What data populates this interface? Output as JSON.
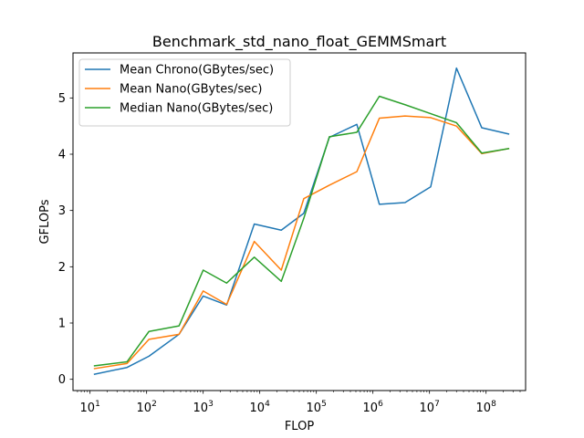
{
  "chart_data": {
    "type": "line",
    "title": "Benchmark_std_nano_float_GEMMSmart",
    "xlabel": "FLOP",
    "ylabel": "GFLOPs",
    "xscale": "log",
    "xlim": [
      5,
      500000000
    ],
    "ylim": [
      -0.2,
      5.8
    ],
    "x_ticks": [
      {
        "value": 10,
        "base": "10",
        "exp": "1"
      },
      {
        "value": 100,
        "base": "10",
        "exp": "2"
      },
      {
        "value": 1000,
        "base": "10",
        "exp": "3"
      },
      {
        "value": 10000,
        "base": "10",
        "exp": "4"
      },
      {
        "value": 100000,
        "base": "10",
        "exp": "5"
      },
      {
        "value": 1000000,
        "base": "10",
        "exp": "6"
      },
      {
        "value": 10000000,
        "base": "10",
        "exp": "7"
      },
      {
        "value": 100000000,
        "base": "10",
        "exp": "8"
      }
    ],
    "y_ticks": [
      {
        "value": 0,
        "label": "0"
      },
      {
        "value": 1,
        "label": "1"
      },
      {
        "value": 2,
        "label": "2"
      },
      {
        "value": 3,
        "label": "3"
      },
      {
        "value": 4,
        "label": "4"
      },
      {
        "value": 5,
        "label": "5"
      }
    ],
    "grid": false,
    "legend_position": "top-left",
    "x": [
      12,
      45,
      110,
      375,
      1000,
      2600,
      8000,
      24000,
      60000,
      170000,
      520000,
      1300000,
      3700000,
      10500000,
      30000000,
      84000000,
      250000000
    ],
    "series": [
      {
        "name": "Mean Chrono(GBytes/sec)",
        "color": "#1f77b4",
        "values": [
          0.09,
          0.21,
          0.41,
          0.8,
          1.48,
          1.32,
          2.76,
          2.65,
          2.95,
          4.3,
          4.53,
          3.11,
          3.14,
          3.42,
          5.53,
          4.47,
          4.36
        ]
      },
      {
        "name": "Mean Nano(GBytes/sec)",
        "color": "#ff7f0e",
        "values": [
          0.19,
          0.28,
          0.71,
          0.8,
          1.57,
          1.33,
          2.45,
          1.94,
          3.21,
          3.45,
          3.69,
          4.64,
          4.68,
          4.65,
          4.5,
          4.01,
          4.1
        ]
      },
      {
        "name": "Median Nano(GBytes/sec)",
        "color": "#2ca02c",
        "values": [
          0.24,
          0.31,
          0.85,
          0.95,
          1.94,
          1.71,
          2.17,
          1.74,
          2.86,
          4.31,
          4.39,
          5.03,
          4.88,
          4.72,
          4.56,
          4.02,
          4.1
        ]
      }
    ]
  }
}
